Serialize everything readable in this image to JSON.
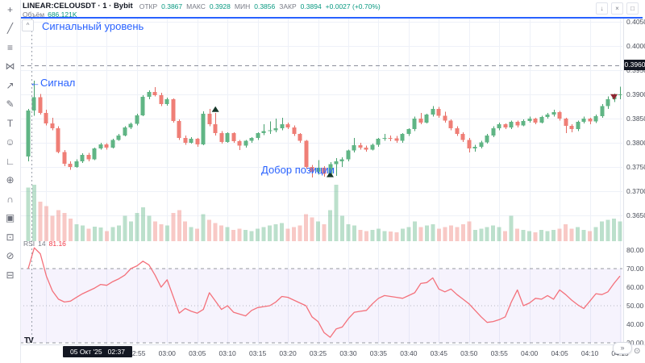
{
  "header": {
    "title": "LINEAR:CELOUSDT · 1 · Bybit",
    "open_label": "ОТКР",
    "open_value": "0.3867",
    "high_label": "МАКС",
    "high_value": "0.3928",
    "low_label": "МИН",
    "low_value": "0.3856",
    "close_label": "ЗАКР",
    "close_value": "0.3894",
    "change": "+0.0027 (+0.70%)",
    "volume_label": "Объём",
    "volume_value": "686.121K"
  },
  "toolbar": {
    "icons": [
      {
        "name": "crosshair-icon",
        "glyph": "+"
      },
      {
        "name": "trend-line-icon",
        "glyph": "╱"
      },
      {
        "name": "fib-retracement-icon",
        "glyph": "≡"
      },
      {
        "name": "pattern-icon",
        "glyph": "⋈"
      },
      {
        "name": "forecast-icon",
        "glyph": "↗"
      },
      {
        "name": "brush-icon",
        "glyph": "✎"
      },
      {
        "name": "text-tool-icon",
        "glyph": "T"
      },
      {
        "name": "emoji-icon",
        "glyph": "☺"
      },
      {
        "name": "measure-icon",
        "glyph": "∟"
      },
      {
        "name": "zoom-in-icon",
        "glyph": "⊕"
      },
      {
        "name": "magnet-icon",
        "glyph": "∩"
      },
      {
        "name": "drawing-mode-icon",
        "glyph": "▣"
      },
      {
        "name": "lock-icon",
        "glyph": "⊡"
      },
      {
        "name": "hide-drawings-icon",
        "glyph": "⊘"
      },
      {
        "name": "delete-drawings-icon",
        "glyph": "⊟"
      }
    ],
    "lightbulb_glyph": "◎"
  },
  "pane_buttons": [
    {
      "name": "move-pane-down-button",
      "glyph": "↓"
    },
    {
      "name": "close-pane-button",
      "glyph": "×"
    },
    {
      "name": "maximize-pane-button",
      "glyph": "□"
    }
  ],
  "chart_options_button": "^",
  "annotations": {
    "signal_level_text": "Сигнальный уровень",
    "signal_text": "←Сигнал",
    "add_position_text": "Добор позиции"
  },
  "signal_level": {
    "price_label": "0.3960",
    "value": 0.396
  },
  "crosshair": {
    "time_badge": "05 Окт '25   02:37"
  },
  "price_axis": {
    "labels": [
      "0.4050",
      "0.4000",
      "0.3950",
      "0.3900",
      "0.3850",
      "0.3800",
      "0.3750",
      "0.3700",
      "0.3650"
    ],
    "values": [
      0.405,
      0.4,
      0.395,
      0.39,
      0.385,
      0.38,
      0.375,
      0.37,
      0.365
    ]
  },
  "rsi_pane": {
    "title": "RSI",
    "period_label": "14",
    "value": "81.16",
    "axis_labels": [
      "80.00",
      "70.00",
      "60.00",
      "50.00",
      "40.00",
      "30.00"
    ],
    "axis_values": [
      80,
      70,
      60,
      50,
      40,
      30
    ],
    "upper_band": 70,
    "middle_band": 50,
    "lower_band": 30
  },
  "time_axis": {
    "labels": [
      "02:45",
      "02:50",
      "02:55",
      "03:00",
      "03:05",
      "03:10",
      "03:15",
      "03:20",
      "03:25",
      "03:30",
      "03:35",
      "03:40",
      "03:45",
      "03:50",
      "03:55",
      "04:00",
      "04:05",
      "04:10",
      "04:15"
    ],
    "minutes": [
      8,
      13,
      18,
      23,
      28,
      33,
      38,
      43,
      48,
      53,
      58,
      63,
      68,
      73,
      78,
      83,
      88,
      93,
      98
    ],
    "grid_only_minutes": [
      3
    ]
  },
  "bottom_bar": {
    "jump_to_end_glyph": "»",
    "clock_glyph": "⊙",
    "tv_logo": "TV"
  },
  "colors": {
    "accent_blue": "#2962ff",
    "annotation_blue": "#2962ff",
    "value_green": "#089981",
    "up_body": "#60b585",
    "up_wick": "#47a06e",
    "down_body": "#ef7e76",
    "down_wick": "#e26a62",
    "rsi_line": "#f4717b",
    "band_fill": "rgba(130,90,220,0.07)",
    "grid": "#eef1f8",
    "badge_bg": "#131722",
    "level_line": "#8b8f9b"
  },
  "chart_data": {
    "type": "candlestick",
    "symbol": "LINEAR:CELOUSDT",
    "interval": "1",
    "exchange": "Bybit",
    "first_candle_time": "02:37",
    "last_candle_time": "04:15",
    "visible_price_range": [
      0.365,
      0.405
    ],
    "candles": [
      [
        0.3772,
        0.387,
        0.3762,
        0.3867,
        0.95
      ],
      [
        0.3867,
        0.3928,
        0.3856,
        0.3894,
        1.0
      ],
      [
        0.3894,
        0.3901,
        0.3858,
        0.3862,
        0.7
      ],
      [
        0.3862,
        0.3868,
        0.3836,
        0.384,
        0.62
      ],
      [
        0.384,
        0.3852,
        0.3826,
        0.383,
        0.45
      ],
      [
        0.383,
        0.3834,
        0.3778,
        0.3781,
        0.55
      ],
      [
        0.3781,
        0.3785,
        0.3752,
        0.3757,
        0.5
      ],
      [
        0.3757,
        0.3762,
        0.3744,
        0.375,
        0.4
      ],
      [
        0.375,
        0.3766,
        0.3748,
        0.3762,
        0.3
      ],
      [
        0.3762,
        0.3778,
        0.3758,
        0.3775,
        0.28
      ],
      [
        0.3775,
        0.3779,
        0.3762,
        0.3766,
        0.22
      ],
      [
        0.3766,
        0.379,
        0.3764,
        0.3788,
        0.26
      ],
      [
        0.3788,
        0.38,
        0.3786,
        0.3797,
        0.24
      ],
      [
        0.3797,
        0.3799,
        0.3786,
        0.379,
        0.18
      ],
      [
        0.379,
        0.3808,
        0.3788,
        0.3806,
        0.25
      ],
      [
        0.3806,
        0.3818,
        0.3804,
        0.3815,
        0.28
      ],
      [
        0.3815,
        0.3834,
        0.3813,
        0.3832,
        0.45
      ],
      [
        0.3832,
        0.3842,
        0.3828,
        0.3839,
        0.35
      ],
      [
        0.3839,
        0.386,
        0.3836,
        0.3857,
        0.5
      ],
      [
        0.3857,
        0.3898,
        0.3855,
        0.3895,
        0.6
      ],
      [
        0.3895,
        0.3908,
        0.389,
        0.3905,
        0.45
      ],
      [
        0.3905,
        0.3915,
        0.3896,
        0.3898,
        0.35
      ],
      [
        0.3898,
        0.3903,
        0.3876,
        0.388,
        0.3
      ],
      [
        0.388,
        0.3893,
        0.3877,
        0.389,
        0.28
      ],
      [
        0.389,
        0.3892,
        0.3842,
        0.3845,
        0.5
      ],
      [
        0.3845,
        0.3848,
        0.3806,
        0.381,
        0.55
      ],
      [
        0.381,
        0.3815,
        0.3796,
        0.38,
        0.35
      ],
      [
        0.38,
        0.3812,
        0.3798,
        0.3808,
        0.25
      ],
      [
        0.3808,
        0.381,
        0.3792,
        0.3797,
        0.22
      ],
      [
        0.3797,
        0.3865,
        0.3795,
        0.386,
        0.48
      ],
      [
        0.386,
        0.387,
        0.3834,
        0.3838,
        0.38
      ],
      [
        0.3838,
        0.3862,
        0.3815,
        0.382,
        0.32
      ],
      [
        0.382,
        0.3824,
        0.3798,
        0.3802,
        0.28
      ],
      [
        0.3802,
        0.3822,
        0.38,
        0.382,
        0.25
      ],
      [
        0.382,
        0.3822,
        0.38,
        0.3803,
        0.2
      ],
      [
        0.3803,
        0.3806,
        0.3785,
        0.3794,
        0.22
      ],
      [
        0.3794,
        0.3806,
        0.379,
        0.3804,
        0.2
      ],
      [
        0.3804,
        0.3812,
        0.38,
        0.381,
        0.18
      ],
      [
        0.381,
        0.3822,
        0.3806,
        0.382,
        0.22
      ],
      [
        0.382,
        0.3838,
        0.3816,
        0.3824,
        0.25
      ],
      [
        0.3824,
        0.3844,
        0.3818,
        0.3826,
        0.28
      ],
      [
        0.3826,
        0.385,
        0.3822,
        0.383,
        0.3
      ],
      [
        0.383,
        0.3852,
        0.3826,
        0.3838,
        0.32
      ],
      [
        0.3838,
        0.3842,
        0.3828,
        0.3832,
        0.22
      ],
      [
        0.3832,
        0.3836,
        0.3814,
        0.3818,
        0.25
      ],
      [
        0.3818,
        0.382,
        0.38,
        0.3804,
        0.28
      ],
      [
        0.3804,
        0.3806,
        0.3746,
        0.375,
        0.48
      ],
      [
        0.375,
        0.3754,
        0.3728,
        0.374,
        0.42
      ],
      [
        0.374,
        0.3764,
        0.3734,
        0.3748,
        0.35
      ],
      [
        0.3748,
        0.3752,
        0.373,
        0.3736,
        0.3
      ],
      [
        0.3736,
        0.376,
        0.3729,
        0.3756,
        0.55
      ],
      [
        0.3756,
        0.3768,
        0.3732,
        0.3762,
        1.0
      ],
      [
        0.3762,
        0.377,
        0.375,
        0.3766,
        0.45
      ],
      [
        0.3766,
        0.3786,
        0.3762,
        0.3784,
        0.3
      ],
      [
        0.3784,
        0.381,
        0.378,
        0.3795,
        0.28
      ],
      [
        0.3795,
        0.38,
        0.3786,
        0.379,
        0.2
      ],
      [
        0.379,
        0.3794,
        0.3782,
        0.3786,
        0.18
      ],
      [
        0.3786,
        0.3798,
        0.3784,
        0.3796,
        0.2
      ],
      [
        0.3796,
        0.381,
        0.3792,
        0.3808,
        0.22
      ],
      [
        0.3808,
        0.3818,
        0.3804,
        0.381,
        0.18
      ],
      [
        0.381,
        0.3815,
        0.3803,
        0.3809,
        0.17
      ],
      [
        0.3809,
        0.3814,
        0.38,
        0.3804,
        0.16
      ],
      [
        0.3804,
        0.382,
        0.38,
        0.3818,
        0.22
      ],
      [
        0.3818,
        0.383,
        0.3814,
        0.3828,
        0.25
      ],
      [
        0.3828,
        0.3854,
        0.3824,
        0.385,
        0.35
      ],
      [
        0.385,
        0.3862,
        0.3838,
        0.3842,
        0.25
      ],
      [
        0.3842,
        0.386,
        0.384,
        0.3858,
        0.28
      ],
      [
        0.3858,
        0.3876,
        0.3854,
        0.387,
        0.3
      ],
      [
        0.387,
        0.3874,
        0.3852,
        0.3856,
        0.22
      ],
      [
        0.3856,
        0.3864,
        0.3842,
        0.3846,
        0.25
      ],
      [
        0.3846,
        0.3848,
        0.3826,
        0.383,
        0.28
      ],
      [
        0.383,
        0.3834,
        0.3814,
        0.3818,
        0.25
      ],
      [
        0.3818,
        0.3822,
        0.3802,
        0.3806,
        0.3
      ],
      [
        0.3806,
        0.381,
        0.378,
        0.3788,
        0.35
      ],
      [
        0.3788,
        0.3796,
        0.3782,
        0.3792,
        0.2
      ],
      [
        0.3792,
        0.3804,
        0.3788,
        0.3801,
        0.22
      ],
      [
        0.3801,
        0.3818,
        0.3798,
        0.3815,
        0.25
      ],
      [
        0.3815,
        0.3834,
        0.3812,
        0.383,
        0.28
      ],
      [
        0.383,
        0.3842,
        0.3826,
        0.3838,
        0.25
      ],
      [
        0.3838,
        0.384,
        0.3828,
        0.3832,
        0.18
      ],
      [
        0.3832,
        0.3846,
        0.3828,
        0.3843,
        0.45
      ],
      [
        0.3843,
        0.3846,
        0.3832,
        0.3836,
        0.22
      ],
      [
        0.3836,
        0.3848,
        0.3834,
        0.3845,
        0.2
      ],
      [
        0.3845,
        0.3854,
        0.3842,
        0.385,
        0.18
      ],
      [
        0.385,
        0.3852,
        0.3838,
        0.3842,
        0.16
      ],
      [
        0.3842,
        0.3856,
        0.384,
        0.3853,
        0.2
      ],
      [
        0.3853,
        0.3862,
        0.385,
        0.3858,
        0.18
      ],
      [
        0.3858,
        0.3868,
        0.3854,
        0.3863,
        0.2
      ],
      [
        0.3863,
        0.3866,
        0.3846,
        0.385,
        0.22
      ],
      [
        0.385,
        0.3852,
        0.382,
        0.3835,
        0.3
      ],
      [
        0.3835,
        0.3838,
        0.3822,
        0.3828,
        0.22
      ],
      [
        0.3828,
        0.3846,
        0.3824,
        0.3843,
        0.25
      ],
      [
        0.3843,
        0.3854,
        0.384,
        0.385,
        0.2
      ],
      [
        0.385,
        0.3852,
        0.3838,
        0.3844,
        0.18
      ],
      [
        0.3844,
        0.3858,
        0.3841,
        0.3855,
        0.25
      ],
      [
        0.3855,
        0.388,
        0.3852,
        0.3876,
        0.35
      ],
      [
        0.3876,
        0.3896,
        0.387,
        0.389,
        0.38
      ],
      [
        0.389,
        0.3902,
        0.3884,
        0.3898,
        0.4
      ],
      [
        0.3898,
        0.3916,
        0.389,
        0.39,
        0.35
      ]
    ],
    "rsi": {
      "period": 14,
      "values": [
        70,
        81.2,
        78,
        66,
        58,
        53.5,
        52,
        52.5,
        54.5,
        56.5,
        58,
        59.5,
        61.5,
        61,
        63,
        64.5,
        66.5,
        70,
        71.5,
        74,
        72,
        66.5,
        60,
        64,
        55,
        46,
        48.5,
        47,
        46,
        48,
        57,
        52.5,
        48,
        50,
        46.5,
        45.5,
        44.5,
        47.5,
        49,
        49.5,
        50,
        52,
        55,
        54.5,
        53,
        51.5,
        50,
        44,
        41.5,
        35.5,
        33,
        37.5,
        38.5,
        43,
        46.5,
        47,
        47.5,
        51,
        54,
        55.5,
        55,
        54.5,
        54,
        55.5,
        57,
        62,
        62.5,
        65,
        59,
        57.5,
        59,
        56,
        53.5,
        51,
        47.5,
        44,
        41,
        41.5,
        42.5,
        44,
        52,
        58.5,
        50,
        51.5,
        54,
        53.5,
        55.5,
        53.5,
        58.5,
        56,
        53,
        50.5,
        48.5,
        52.5,
        56.5,
        56,
        57.5,
        62,
        66
      ]
    },
    "markers": [
      {
        "index": 31,
        "shape": "triangle-up",
        "position": "above",
        "color": "#17382a"
      },
      {
        "index": 50,
        "shape": "triangle-up",
        "position": "below",
        "color": "#17382a",
        "label": "Добор позиции"
      },
      {
        "index": 97,
        "shape": "triangle-down",
        "position": "above",
        "color": "#8f2430"
      }
    ]
  }
}
